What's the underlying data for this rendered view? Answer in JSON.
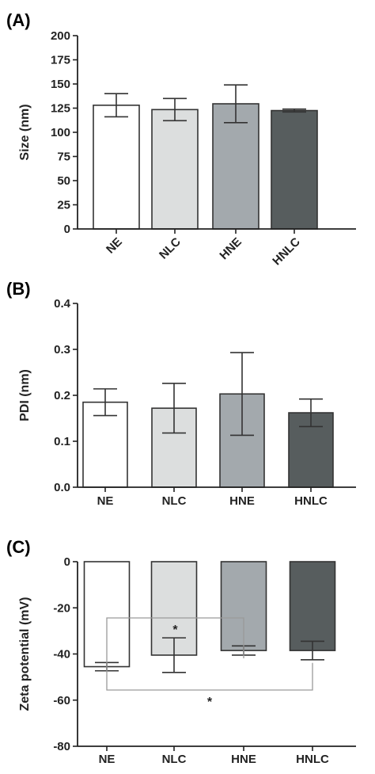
{
  "colors": [
    "#ffffff",
    "#dcdede",
    "#a3a9ad",
    "#575d5e"
  ],
  "chart_data": [
    {
      "type": "bar",
      "panel": "(A)",
      "categories": [
        "NE",
        "NLC",
        "HNE",
        "HNLC"
      ],
      "values": [
        128,
        123.5,
        129.5,
        122.5
      ],
      "errors": [
        12,
        11.5,
        19.5,
        1.5
      ],
      "ylabel": "Size (nm)",
      "ylim": [
        0,
        200
      ],
      "yticks": [
        0,
        25,
        50,
        75,
        100,
        125,
        150,
        175,
        200
      ],
      "xlabel_rotated": true
    },
    {
      "type": "bar",
      "panel": "(B)",
      "categories": [
        "NE",
        "NLC",
        "HNE",
        "HNLC"
      ],
      "values": [
        0.185,
        0.172,
        0.203,
        0.162
      ],
      "errors": [
        0.029,
        0.054,
        0.09,
        0.03
      ],
      "ylabel": "PDI (nm)",
      "ylim": [
        0,
        0.4
      ],
      "yticks": [
        0.0,
        0.1,
        0.2,
        0.3,
        0.4
      ],
      "xlabel_rotated": false
    },
    {
      "type": "bar",
      "panel": "(C)",
      "categories": [
        "NE",
        "NLC",
        "HNE",
        "HNLC"
      ],
      "values": [
        -45.5,
        -40.5,
        -38.5,
        -38.5
      ],
      "errors": [
        1.8,
        7.5,
        2.0,
        4.0
      ],
      "ylabel": "Zeta potential (mV)",
      "ylim": [
        -80,
        0
      ],
      "yticks": [
        0,
        -20,
        -40,
        -60,
        -80
      ],
      "xlabel_rotated": false,
      "significance": [
        {
          "from": "NE",
          "to": "HNE",
          "label": "*"
        },
        {
          "from": "NE",
          "to": "HNLC",
          "label": "*"
        }
      ]
    }
  ]
}
